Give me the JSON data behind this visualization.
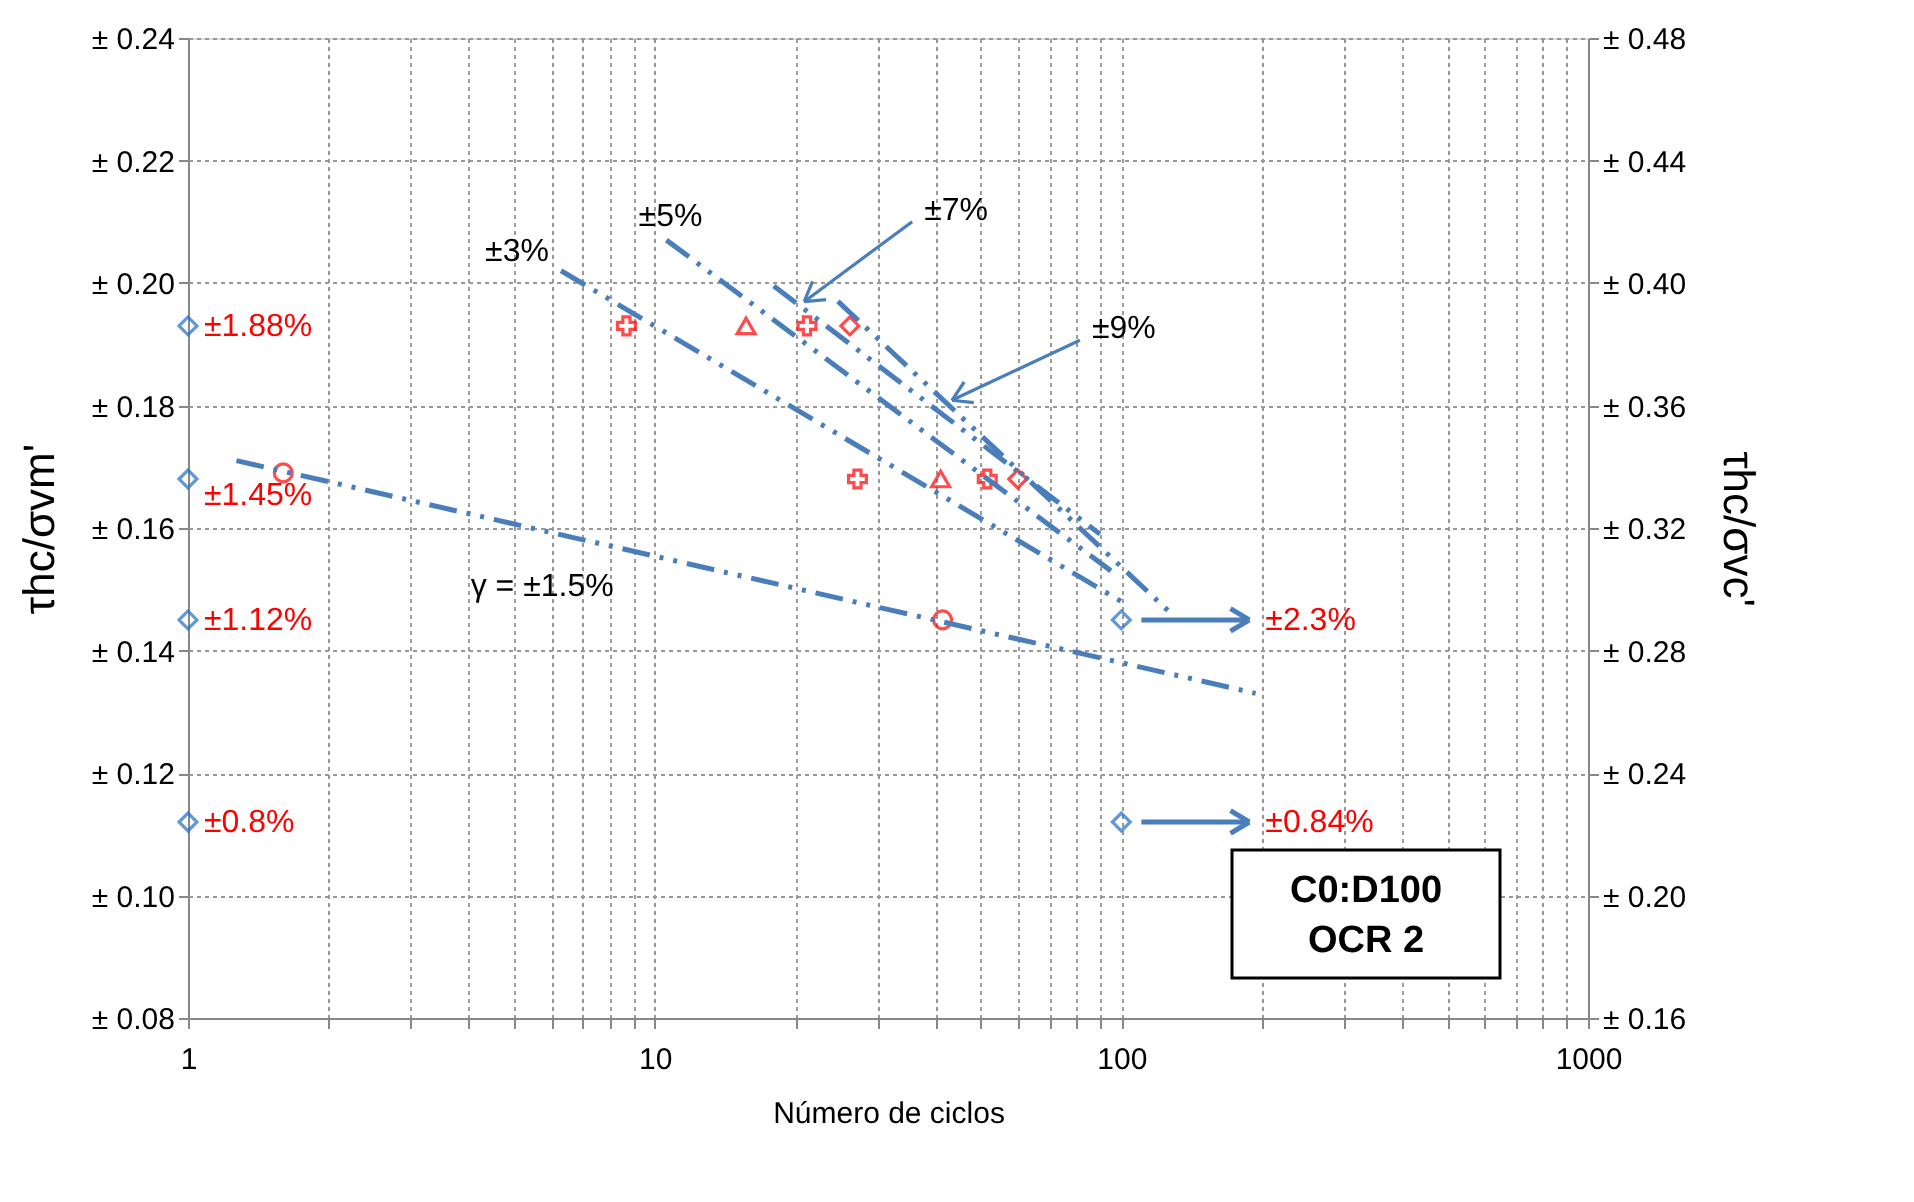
{
  "chart_data": {
    "type": "scatter",
    "xlabel": "Número de ciclos",
    "ylabel": "τhc/σvm'",
    "y2label": "τhc/σvc'",
    "log": "x",
    "grid": true,
    "legend": false,
    "xlim": [
      1,
      1000
    ],
    "xticks": [
      1,
      {
        "value": 2,
        "label": null
      },
      {
        "value": 3,
        "label": null
      },
      {
        "value": 4,
        "label": null
      },
      {
        "value": 5,
        "label": null
      },
      {
        "value": 6,
        "label": null
      },
      {
        "value": 7,
        "label": null
      },
      {
        "value": 8,
        "label": null
      },
      {
        "value": 9,
        "label": null
      },
      10,
      {
        "value": 20,
        "label": null
      },
      {
        "value": 30,
        "label": null
      },
      {
        "value": 40,
        "label": null
      },
      {
        "value": 50,
        "label": null
      },
      {
        "value": 60,
        "label": null
      },
      {
        "value": 70,
        "label": null
      },
      {
        "value": 80,
        "label": null
      },
      {
        "value": 90,
        "label": null
      },
      100,
      {
        "value": 200,
        "label": null
      },
      {
        "value": 300,
        "label": null
      },
      {
        "value": 400,
        "label": null
      },
      {
        "value": 500,
        "label": null
      },
      {
        "value": 600,
        "label": null
      },
      {
        "value": 700,
        "label": null
      },
      {
        "value": 800,
        "label": null
      },
      {
        "value": 900,
        "label": null
      },
      1000
    ],
    "ylim": [
      0.08,
      0.24
    ],
    "yticks": [
      {
        "value": 0.08,
        "label": "± 0.08"
      },
      {
        "value": 0.1,
        "label": "± 0.10"
      },
      {
        "value": 0.12,
        "label": "± 0.12"
      },
      {
        "value": 0.14,
        "label": "± 0.14"
      },
      {
        "value": 0.16,
        "label": "± 0.16"
      },
      {
        "value": 0.18,
        "label": "± 0.18"
      },
      {
        "value": 0.2,
        "label": "± 0.20"
      },
      {
        "value": 0.22,
        "label": "± 0.22"
      },
      {
        "value": 0.24,
        "label": "± 0.24"
      }
    ],
    "y2lim": [
      0.16,
      0.48
    ],
    "y2ticks": [
      {
        "value": 0.16,
        "label": "± 0.16"
      },
      {
        "value": 0.2,
        "label": "± 0.20"
      },
      {
        "value": 0.24,
        "label": "± 0.24"
      },
      {
        "value": 0.28,
        "label": "± 0.28"
      },
      {
        "value": 0.32,
        "label": "± 0.32"
      },
      {
        "value": 0.36,
        "label": "± 0.36"
      },
      {
        "value": 0.4,
        "label": "± 0.40"
      },
      {
        "value": 0.44,
        "label": "± 0.44"
      },
      {
        "value": 0.48,
        "label": "± 0.48"
      }
    ],
    "series": [
      {
        "marker": "diamond",
        "color": "#1f6fc5",
        "x": [
          1,
          1,
          1,
          1
        ],
        "values": [
          0.193,
          0.168,
          0.145,
          0.112
        ]
      },
      {
        "marker": "diamond",
        "color": "#1f6fc5",
        "x": [
          100,
          100
        ],
        "values": [
          0.145,
          0.112
        ]
      },
      {
        "marker": "cross",
        "color": "#ff0000",
        "x": [
          8.7,
          27.2
        ],
        "values": [
          0.193,
          0.168
        ]
      },
      {
        "marker": "triangle",
        "color": "#ff0000",
        "x": [
          15.7,
          41
        ],
        "values": [
          0.193,
          0.168
        ]
      },
      {
        "marker": "cross",
        "color": "#ff0000",
        "x": [
          21.2,
          51.6
        ],
        "values": [
          0.193,
          0.168
        ]
      },
      {
        "marker": "diamond",
        "color": "#ff0000",
        "x": [
          26.2,
          60
        ],
        "values": [
          0.193,
          0.168
        ]
      },
      {
        "marker": "circle",
        "color": "#ff0000",
        "x": [
          1.6,
          41.4
        ],
        "values": [
          0.169,
          0.145
        ]
      },
      {
        "type": "line",
        "name": "γ = ±1.5%",
        "marker": "none",
        "line_style": "dashed",
        "color": "#4a7ebb",
        "x": [
          1.27,
          194
        ],
        "values": [
          0.171,
          0.133
        ]
      },
      {
        "type": "line",
        "name": "±3%",
        "marker": "none",
        "line_style": "dashed",
        "color": "#4a7ebb",
        "x": [
          6.3,
          100
        ],
        "values": [
          0.202,
          0.148
        ]
      },
      {
        "type": "line",
        "name": "±5%",
        "marker": "none",
        "line_style": "dashed",
        "color": "#4a7ebb",
        "x": [
          10.6,
          95
        ],
        "values": [
          0.207,
          0.153
        ]
      },
      {
        "type": "line",
        "marker": "none",
        "line_style": "dashed",
        "color": "#4a7ebb",
        "x": [
          18,
          90
        ],
        "values": [
          0.1995,
          0.159
        ]
      },
      {
        "type": "line",
        "marker": "none",
        "line_style": "dashed",
        "color": "#4a7ebb",
        "x": [
          24.7,
          128
        ],
        "values": [
          0.197,
          0.146
        ]
      }
    ],
    "annotations": [
      {
        "text": "±1.88%",
        "x": 1,
        "y": 0.193
      },
      {
        "text": "±1.45%",
        "x": 1,
        "y": 0.168
      },
      {
        "text": "±1.12%",
        "x": 1,
        "y": 0.145
      },
      {
        "text": "±0.8%",
        "x": 1,
        "y": 0.112
      },
      "±2.3%",
      "±0.84%",
      {
        "text": "±7%",
        "x": 20.5,
        "y": 0.1963
      },
      {
        "text": "±9%",
        "x": 42.5,
        "y": 0.1802
      },
      "C0:D100\nOCR 2"
    ]
  }
}
